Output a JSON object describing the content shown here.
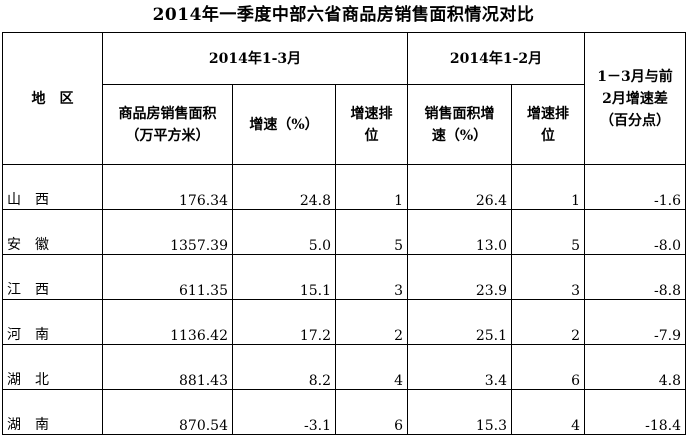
{
  "title": "2014年一季度中部六省商品房销售面积情况对比",
  "headers": {
    "region": "地　区",
    "period_q1": "2014年1-3月",
    "period_jan_feb": "2014年1-2月",
    "diff": "1－3月与前2月增速差（百分点）",
    "diff_line1": "1－3月与前",
    "diff_line2": "2月增速差",
    "diff_line3": "（百分点）",
    "sales_area_line1": "商品房销售面积",
    "sales_area_line2": "（万平方米）",
    "growth": "增速（%）",
    "rank_line1": "增速排",
    "rank_line2": "位",
    "area_growth_line1": "销售面积增",
    "area_growth_line2": "速（%）",
    "rank2_line1": "增速排",
    "rank2_line2": "位"
  },
  "rows": [
    {
      "region_a": "山",
      "region_b": "西",
      "sales_area": "176.34",
      "growth": "24.8",
      "rank": "1",
      "growth_jf": "26.4",
      "rank_jf": "1",
      "diff": "-1.6"
    },
    {
      "region_a": "安",
      "region_b": "徽",
      "sales_area": "1357.39",
      "growth": "5.0",
      "rank": "5",
      "growth_jf": "13.0",
      "rank_jf": "5",
      "diff": "-8.0"
    },
    {
      "region_a": "江",
      "region_b": "西",
      "sales_area": "611.35",
      "growth": "15.1",
      "rank": "3",
      "growth_jf": "23.9",
      "rank_jf": "3",
      "diff": "-8.8"
    },
    {
      "region_a": "河",
      "region_b": "南",
      "sales_area": "1136.42",
      "growth": "17.2",
      "rank": "2",
      "growth_jf": "25.1",
      "rank_jf": "2",
      "diff": "-7.9"
    },
    {
      "region_a": "湖",
      "region_b": "北",
      "sales_area": "881.43",
      "growth": "8.2",
      "rank": "4",
      "growth_jf": "3.4",
      "rank_jf": "6",
      "diff": "4.8"
    },
    {
      "region_a": "湖",
      "region_b": "南",
      "sales_area": "870.54",
      "growth": "-3.1",
      "rank": "6",
      "growth_jf": "15.3",
      "rank_jf": "4",
      "diff": "-18.4"
    }
  ]
}
